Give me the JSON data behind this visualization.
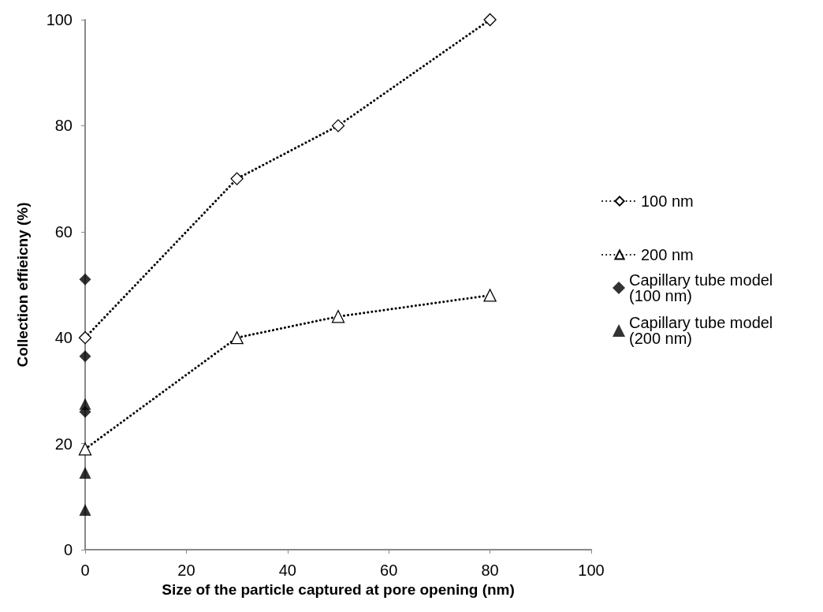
{
  "chart_data": {
    "type": "line",
    "xlabel": "Size of the particle captured at pore opening (nm)",
    "ylabel": "Collection effieicny (%)",
    "xlim": [
      0,
      100
    ],
    "xticks": [
      0,
      20,
      40,
      60,
      80,
      100
    ],
    "ylim": [
      0,
      100
    ],
    "yticks": [
      0,
      20,
      40,
      60,
      80,
      100
    ],
    "grid": false,
    "legend": "right",
    "line_style": "dotted",
    "series": [
      {
        "name": "100 nm",
        "color": "#000000",
        "marker": "diamond",
        "x": [
          0,
          30,
          50,
          80
        ],
        "values": [
          40,
          70,
          80,
          100
        ]
      },
      {
        "name": "200 nm",
        "color": "#000000",
        "marker": "triangle",
        "x": [
          0,
          30,
          50,
          80
        ],
        "values": [
          19,
          40,
          44,
          48
        ]
      },
      {
        "name": "Capillary tube model (100 nm)",
        "type": "scatter",
        "color": "#000000",
        "marker": "diamond",
        "x": [
          0,
          0,
          0
        ],
        "values": [
          51,
          36.5,
          26
        ]
      },
      {
        "name": "Capillary tube model (200 nm)",
        "type": "scatter",
        "color": "#000000",
        "marker": "triangle",
        "x": [
          0,
          0,
          0
        ],
        "values": [
          27.5,
          14.5,
          7.5
        ]
      }
    ]
  }
}
